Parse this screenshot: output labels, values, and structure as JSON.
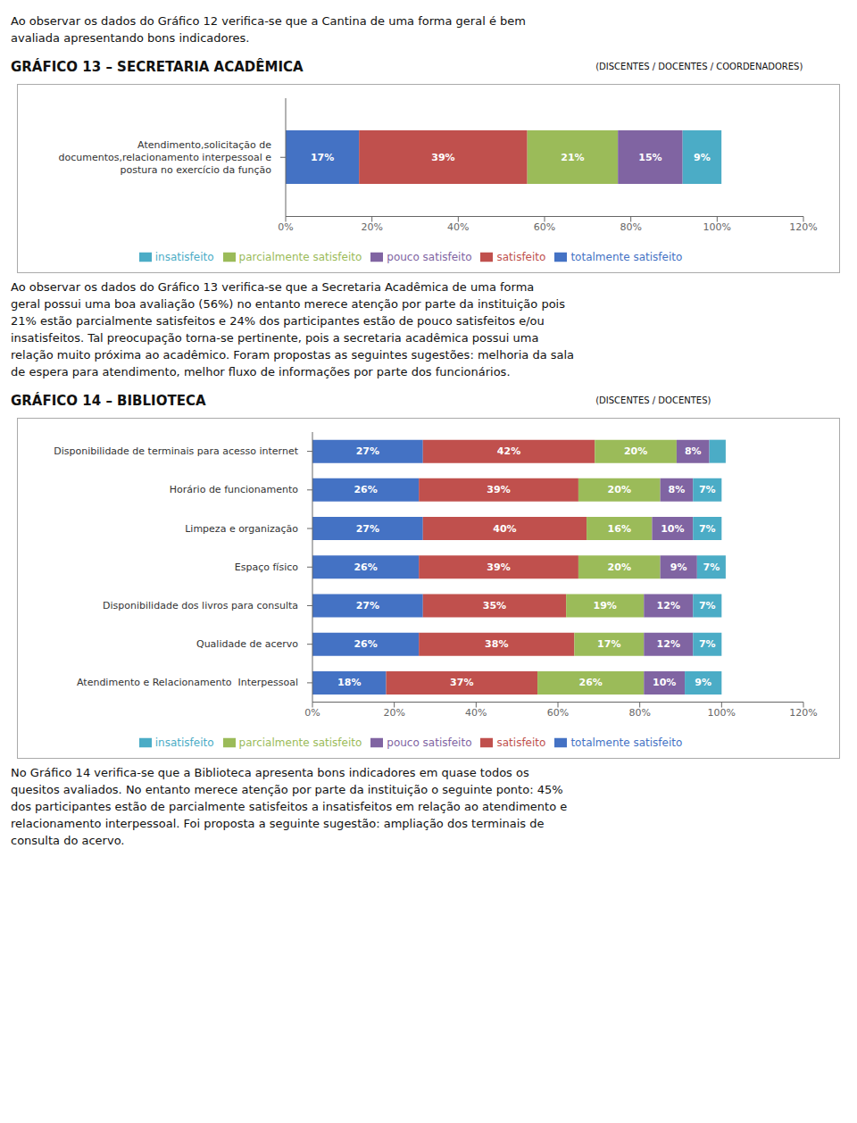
{
  "chart_data": [
    {
      "type": "bar",
      "title": "GRÁFICO 13 – SECRETARIA ACADÊMICA",
      "subtitle": "(DISCENTES / DOCENTES / COORDENADORES)",
      "annotations": [
        {
          "position": "above",
          "lines": [
            "Ao observar os dados do Gráfico 12 verifica-se que a Cantina de uma forma geral é bem",
            "avaliada apresentando bons indicadores."
          ]
        },
        {
          "position": "below",
          "lines": [
            "Ao observar os dados do Gráfico 13 verifica-se que a Secretaria Acadêmica de uma forma",
            "geral possui uma boa avaliação (56%) no entanto merece atenção por parte da instituição pois",
            "21% estão parcialmente satisfeitos e 24% dos participantes estão de pouco satisfeitos e/ou",
            "insatisfeitos. Tal preocupação torna-se pertinente, pois a secretaria acadêmica possui uma",
            "relação muito próxima ao acadêmico. Foram propostas as seguintes sugestões: melhoria da sala",
            "de espera para atendimento, melhor fluxo de informações por parte dos funcionários."
          ]
        }
      ],
      "orientation": "horizontal",
      "stacked": true,
      "data_labels": true,
      "grid": false,
      "legend": "bottom",
      "categories": [
        "Atendimento,solicitação de\ndocumentos,relacionamento interpessoal e\npostura no exercício da função"
      ],
      "series": [
        {
          "name": "totalmente satisfeito",
          "color": "#4472c4",
          "values": [
            17
          ],
          "value_labels": [
            "17%"
          ]
        },
        {
          "name": "satisfeito",
          "color": "#c0504d",
          "values": [
            39
          ],
          "value_labels": [
            "39%"
          ]
        },
        {
          "name": "parcialmente satisfeito",
          "color": "#9bbb59",
          "values": [
            21
          ],
          "value_labels": [
            "21%"
          ]
        },
        {
          "name": "pouco satisfeito",
          "color": "#8064a2",
          "values": [
            15
          ],
          "value_labels": [
            "15%"
          ]
        },
        {
          "name": "insatisfeito",
          "color": "#4bacc6",
          "values": [
            9
          ],
          "value_labels": [
            "9%"
          ]
        }
      ],
      "xlim": [
        0,
        120
      ],
      "xticks": [
        {
          "value": 0,
          "label": "0%"
        },
        {
          "value": 20,
          "label": "20%"
        },
        {
          "value": 40,
          "label": "40%"
        },
        {
          "value": 60,
          "label": "60%"
        },
        {
          "value": 80,
          "label": "80%"
        },
        {
          "value": 100,
          "label": "100%"
        },
        {
          "value": 120,
          "label": "120%"
        }
      ]
    },
    {
      "type": "bar",
      "title": "GRÁFICO 14 – BIBLIOTECA",
      "subtitle": "(DISCENTES / DOCENTES)",
      "annotations": [
        {
          "position": "below",
          "lines": [
            "No Gráfico 14 verifica-se que a Biblioteca apresenta bons indicadores em quase todos os",
            "quesitos avaliados. No entanto merece atenção por parte da instituição o seguinte ponto: 45%",
            "dos participantes estão de parcialmente satisfeitos a insatisfeitos em relação ao atendimento e",
            "relacionamento interpessoal. Foi proposta a seguinte sugestão: ampliação dos terminais de",
            "consulta do acervo."
          ]
        }
      ],
      "orientation": "horizontal",
      "stacked": true,
      "data_labels": true,
      "grid": false,
      "legend": "bottom",
      "categories": [
        "Disponibilidade de terminais para acesso internet",
        "Horário de funcionamento",
        "Limpeza e organização",
        "Espaço físico",
        "Disponibilidade dos livros para consulta",
        "Qualidade de acervo",
        "Atendimento e Relacionamento  Interpessoal"
      ],
      "series": [
        {
          "name": "totalmente satisfeito",
          "color": "#4472c4",
          "values": [
            27,
            26,
            27,
            26,
            27,
            26,
            18
          ],
          "value_labels": [
            "27%",
            "26%",
            "27%",
            "26%",
            "27%",
            "26%",
            "18%"
          ]
        },
        {
          "name": "satisfeito",
          "color": "#c0504d",
          "values": [
            42,
            39,
            40,
            39,
            35,
            38,
            37
          ],
          "value_labels": [
            "42%",
            "39%",
            "40%",
            "39%",
            "35%",
            "38%",
            "37%"
          ]
        },
        {
          "name": "parcialmente satisfeito",
          "color": "#9bbb59",
          "values": [
            20,
            20,
            16,
            20,
            19,
            17,
            26
          ],
          "value_labels": [
            "20%",
            "20%",
            "16%",
            "20%",
            "19%",
            "17%",
            "26%"
          ]
        },
        {
          "name": "pouco satisfeito",
          "color": "#8064a2",
          "values": [
            8,
            8,
            10,
            9,
            12,
            12,
            10
          ],
          "value_labels": [
            "8%",
            "8%",
            "10%",
            "9%",
            "12%",
            "12%",
            "10%"
          ]
        },
        {
          "name": "insatisfeito",
          "color": "#4bacc6",
          "values": [
            4,
            7,
            7,
            7,
            7,
            7,
            9
          ],
          "value_labels": [
            null,
            "7%",
            "7%",
            "7%",
            "7%",
            "7%",
            "9%"
          ]
        }
      ],
      "xlim": [
        0,
        120
      ],
      "xticks": [
        {
          "value": 0,
          "label": "0%"
        },
        {
          "value": 20,
          "label": "20%"
        },
        {
          "value": 40,
          "label": "40%"
        },
        {
          "value": 60,
          "label": "60%"
        },
        {
          "value": 80,
          "label": "80%"
        },
        {
          "value": 100,
          "label": "100%"
        },
        {
          "value": 120,
          "label": "120%"
        }
      ]
    }
  ]
}
